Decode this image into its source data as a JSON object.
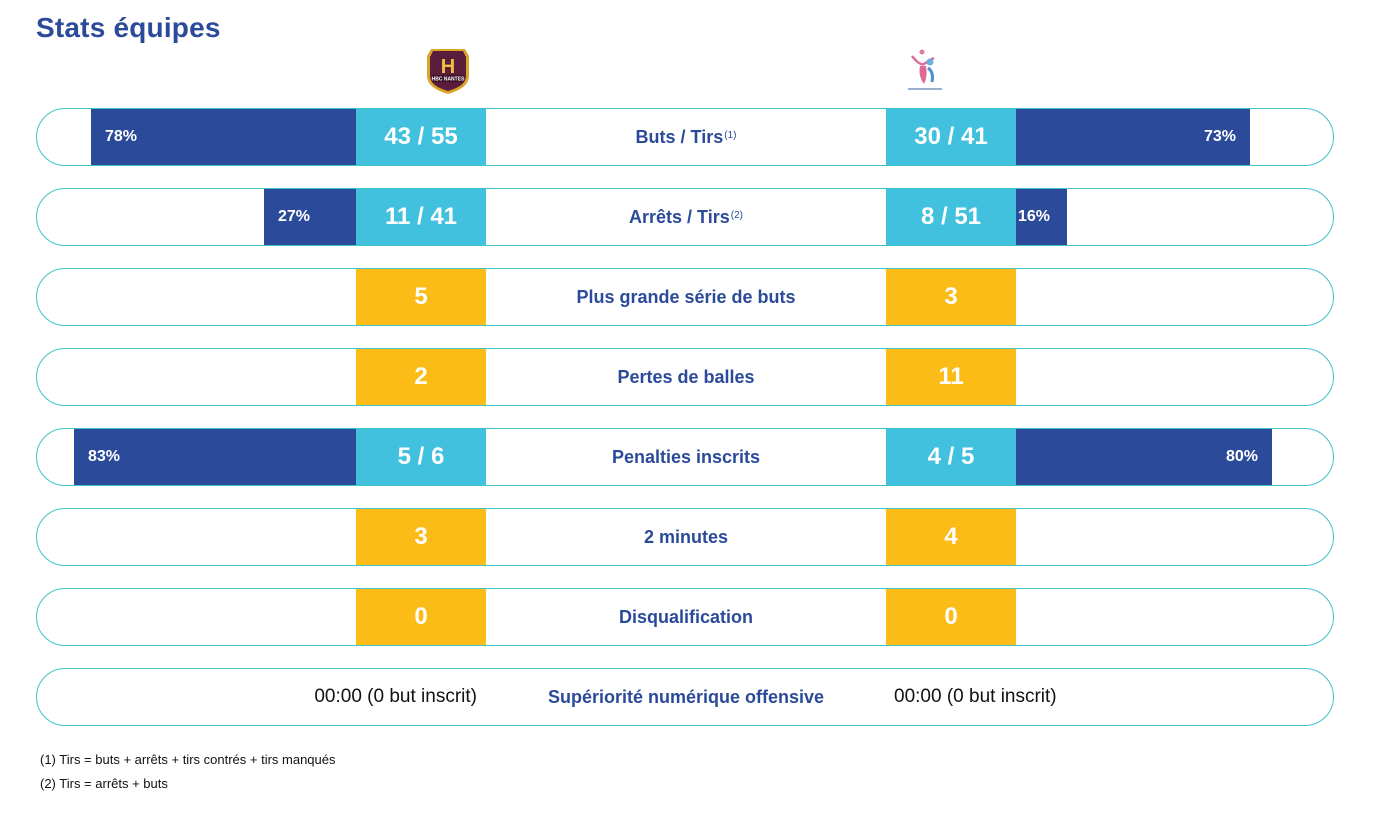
{
  "page": {
    "title": "Stats équipes"
  },
  "teams": {
    "home": {
      "logo": "hbc-nantes-logo",
      "logo_text": "HBC NANTES",
      "color": "#5a1e3c"
    },
    "away": {
      "logo": "away-team-logo"
    }
  },
  "colors": {
    "accent_blue": "#2b4a99",
    "value_blue": "#41c1de",
    "value_yellow": "#fbbc18",
    "row_border": "#41c4c8"
  },
  "stats": [
    {
      "label": "Buts / Tirs",
      "sup": "(1)",
      "home_value": "43 / 55",
      "away_value": "30 / 41",
      "home_pct": 78,
      "away_pct": 73,
      "home_pct_label": "78%",
      "away_pct_label": "73%",
      "style": "blue"
    },
    {
      "label": "Arrêts / Tirs",
      "sup": "(2)",
      "home_value": "11 / 41",
      "away_value": "8 / 51",
      "home_pct": 27,
      "away_pct": 16,
      "home_pct_label": "27%",
      "away_pct_label": "16%",
      "style": "blue"
    },
    {
      "label": "Plus grande série de buts",
      "home_value": "5",
      "away_value": "3",
      "style": "yellow"
    },
    {
      "label": "Pertes de balles",
      "home_value": "2",
      "away_value": "11",
      "style": "yellow"
    },
    {
      "label": "Penalties inscrits",
      "home_value": "5 / 6",
      "away_value": "4 / 5",
      "home_pct": 83,
      "away_pct": 80,
      "home_pct_label": "83%",
      "away_pct_label": "80%",
      "style": "blue"
    },
    {
      "label": "2 minutes",
      "home_value": "3",
      "away_value": "4",
      "style": "yellow"
    },
    {
      "label": "Disqualification",
      "home_value": "0",
      "away_value": "0",
      "style": "yellow"
    },
    {
      "label": "Supériorité numérique offensive",
      "home_value": "00:00 (0 but inscrit)",
      "away_value": "00:00 (0 but inscrit)",
      "style": "text"
    }
  ],
  "footnotes": [
    "(1) Tirs = buts + arrêts + tirs contrés + tirs manqués",
    "(2) Tirs = arrêts + buts"
  ]
}
